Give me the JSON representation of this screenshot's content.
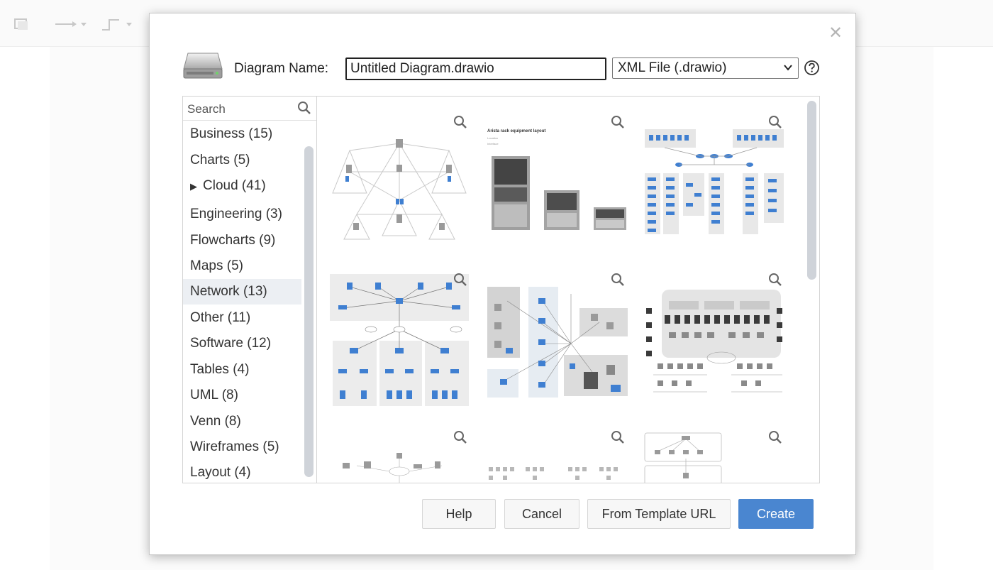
{
  "dialog": {
    "name_label": "Diagram Name:",
    "name_value": "Untitled Diagram.drawio",
    "format_selected": "XML File (.drawio)",
    "search_placeholder": "Search",
    "categories": [
      {
        "label": "Business (15)",
        "selected": false,
        "expandable": false
      },
      {
        "label": "Charts (5)",
        "selected": false,
        "expandable": false
      },
      {
        "label": "Cloud (41)",
        "selected": false,
        "expandable": true
      },
      {
        "label": "Engineering (3)",
        "selected": false,
        "expandable": false
      },
      {
        "label": "Flowcharts (9)",
        "selected": false,
        "expandable": false
      },
      {
        "label": "Maps (5)",
        "selected": false,
        "expandable": false
      },
      {
        "label": "Network (13)",
        "selected": true,
        "expandable": false
      },
      {
        "label": "Other (11)",
        "selected": false,
        "expandable": false
      },
      {
        "label": "Software (12)",
        "selected": false,
        "expandable": false
      },
      {
        "label": "Tables (4)",
        "selected": false,
        "expandable": false
      },
      {
        "label": "UML (8)",
        "selected": false,
        "expandable": false
      },
      {
        "label": "Venn (8)",
        "selected": false,
        "expandable": false
      },
      {
        "label": "Wireframes (5)",
        "selected": false,
        "expandable": false
      },
      {
        "label": "Layout (4)",
        "selected": false,
        "expandable": false
      }
    ],
    "thumbnail_texts": {
      "rack_title": "Arista rack equipment layout",
      "rack_line1": "Location",
      "rack_line2": "Interface"
    },
    "buttons": {
      "help": "Help",
      "cancel": "Cancel",
      "from_template_url": "From Template URL",
      "create": "Create"
    },
    "colors": {
      "primary_button": "#4a86d0",
      "selected_category": "#eceff3",
      "network_blue": "#3f7fd1"
    }
  }
}
